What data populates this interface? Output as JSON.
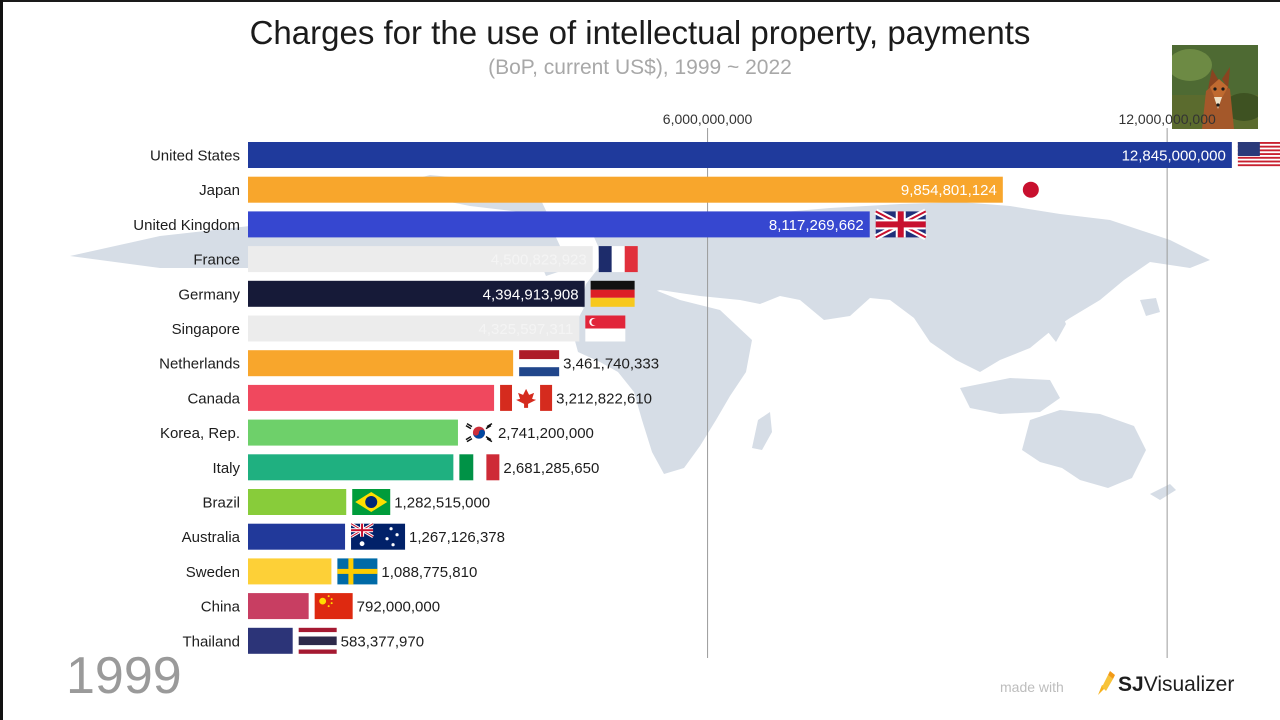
{
  "chart_data": {
    "type": "bar",
    "orientation": "horizontal",
    "title": "Charges for the use of intellectual property, payments",
    "subtitle": "(BoP, current US$), 1999 ~ 2022",
    "year": "1999",
    "ticks": [
      {
        "value": 6000000000,
        "label": "6,000,000,000"
      },
      {
        "value": 12000000000,
        "label": "12,000,000,000"
      }
    ],
    "xlim": [
      0,
      13800000000
    ],
    "gridlines": true,
    "bars": [
      {
        "country": "United States",
        "value": 12845000000,
        "label": "12,845,000,000",
        "color": "#1f3a9c",
        "flag": "us-flag"
      },
      {
        "country": "Japan",
        "value": 9854801124,
        "label": "9,854,801,124",
        "color": "#f8a62c",
        "flag": "japan-flag"
      },
      {
        "country": "United Kingdom",
        "value": 8117269662,
        "label": "8,117,269,662",
        "color": "#3647d0",
        "flag": "uk-flag"
      },
      {
        "country": "France",
        "value": 4500823923,
        "label": "4,500,823,923",
        "color": "#ececec",
        "flag": "france-flag"
      },
      {
        "country": "Germany",
        "value": 4394913908,
        "label": "4,394,913,908",
        "color": "#161a38",
        "flag": "germany-flag"
      },
      {
        "country": "Singapore",
        "value": 4325597311,
        "label": "4,325,597,311",
        "color": "#ececec",
        "flag": "singapore-flag"
      },
      {
        "country": "Netherlands",
        "value": 3461740333,
        "label": "3,461,740,333",
        "color": "#f8a62c",
        "flag": "netherlands-flag"
      },
      {
        "country": "Canada",
        "value": 3212822610,
        "label": "3,212,822,610",
        "color": "#f0485e",
        "flag": "canada-flag"
      },
      {
        "country": "Korea, Rep.",
        "value": 2741200000,
        "label": "2,741,200,000",
        "color": "#6ed06a",
        "flag": "korea-flag"
      },
      {
        "country": "Italy",
        "value": 2681285650,
        "label": "2,681,285,650",
        "color": "#1fb080",
        "flag": "italy-flag"
      },
      {
        "country": "Brazil",
        "value": 1282515000,
        "label": "1,282,515,000",
        "color": "#88cc3a",
        "flag": "brazil-flag"
      },
      {
        "country": "Australia",
        "value": 1267126378,
        "label": "1,267,126,378",
        "color": "#21399a",
        "flag": "australia-flag"
      },
      {
        "country": "Sweden",
        "value": 1088775810,
        "label": "1,088,775,810",
        "color": "#fdd037",
        "flag": "sweden-flag"
      },
      {
        "country": "China",
        "value": 792000000,
        "label": "792,000,000",
        "color": "#c83e62",
        "flag": "china-flag"
      },
      {
        "country": "Thailand",
        "value": 583377970,
        "label": "583,377,970",
        "color": "#2c3478",
        "flag": "thailand-flag"
      }
    ]
  },
  "watermark": {
    "faint": "made with",
    "brand_light": "Visualizer",
    "brand_bold": "SJ"
  }
}
